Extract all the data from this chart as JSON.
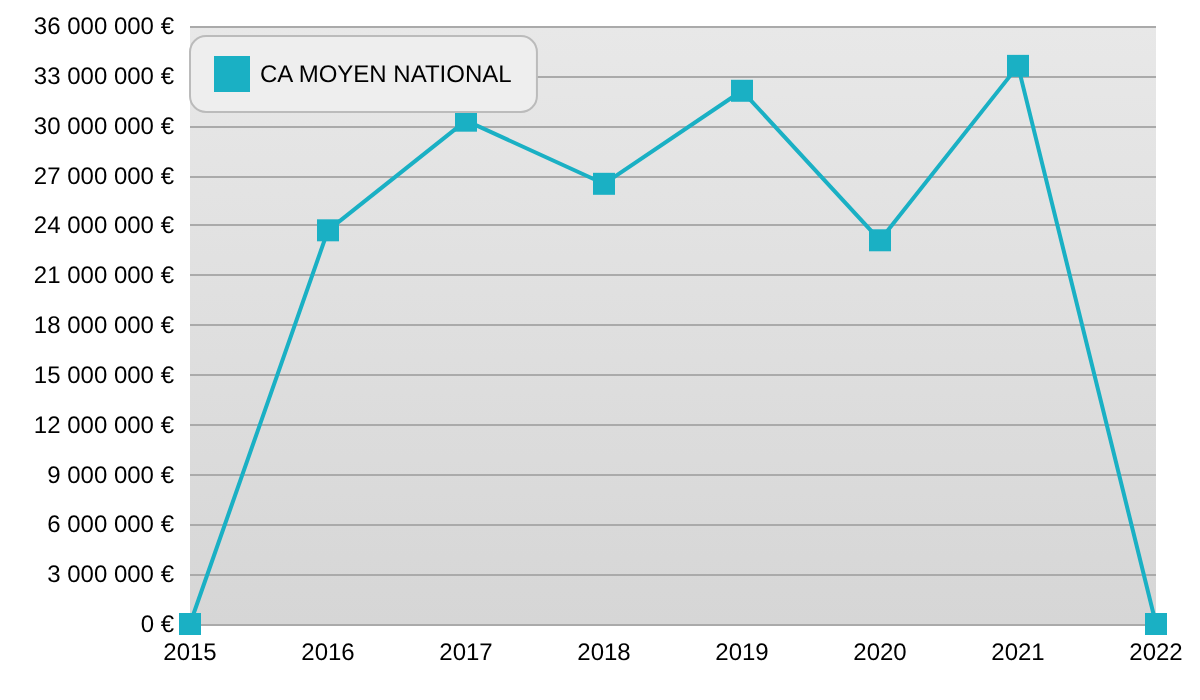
{
  "chart_data": {
    "type": "line",
    "categories": [
      "2015",
      "2016",
      "2017",
      "2018",
      "2019",
      "2020",
      "2021",
      "2022"
    ],
    "series": [
      {
        "name": "CA MOYEN NATIONAL",
        "color": "#1ab0c4",
        "values": [
          0,
          23700000,
          30300000,
          26500000,
          32100000,
          23100000,
          33600000,
          0
        ]
      }
    ],
    "ylim": [
      0,
      36000000
    ],
    "yticks": [
      {
        "value": 0,
        "label": "0 €"
      },
      {
        "value": 3000000,
        "label": "3 000 000 €"
      },
      {
        "value": 6000000,
        "label": "6 000 000 €"
      },
      {
        "value": 9000000,
        "label": "9 000 000 €"
      },
      {
        "value": 12000000,
        "label": "12 000 000 €"
      },
      {
        "value": 15000000,
        "label": "15 000 000 €"
      },
      {
        "value": 18000000,
        "label": "18 000 000 €"
      },
      {
        "value": 21000000,
        "label": "21 000 000 €"
      },
      {
        "value": 24000000,
        "label": "24 000 000 €"
      },
      {
        "value": 27000000,
        "label": "27 000 000 €"
      },
      {
        "value": 30000000,
        "label": "30 000 000 €"
      },
      {
        "value": 33000000,
        "label": "33 000 000 €"
      },
      {
        "value": 36000000,
        "label": "36 000 000 €"
      }
    ],
    "grid": "y",
    "legend": "top left",
    "marker": "square",
    "line_style": "solid"
  }
}
